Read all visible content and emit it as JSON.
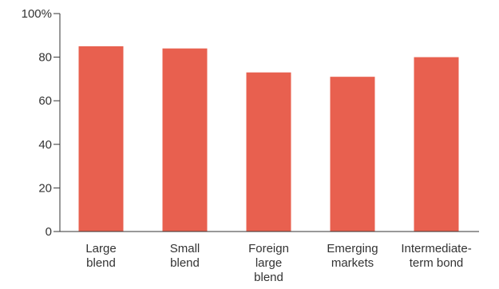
{
  "chart_data": {
    "type": "bar",
    "title": "",
    "xlabel": "",
    "ylabel": "",
    "categories": [
      [
        "Large",
        "blend"
      ],
      [
        "Small",
        "blend"
      ],
      [
        "Foreign",
        "large",
        "blend"
      ],
      [
        "Emerging",
        "markets"
      ],
      [
        "Intermediate-",
        "term bond"
      ]
    ],
    "values": [
      85,
      84,
      73,
      71,
      80
    ],
    "ylim": [
      0,
      100
    ],
    "yticks": [
      0,
      20,
      40,
      60,
      80,
      100
    ],
    "ytick_labels": [
      "0",
      "20",
      "40",
      "60",
      "80",
      "100%"
    ],
    "grid": false,
    "legend": "none",
    "bar_color": "#e8604f",
    "axis_color": "#333333"
  }
}
